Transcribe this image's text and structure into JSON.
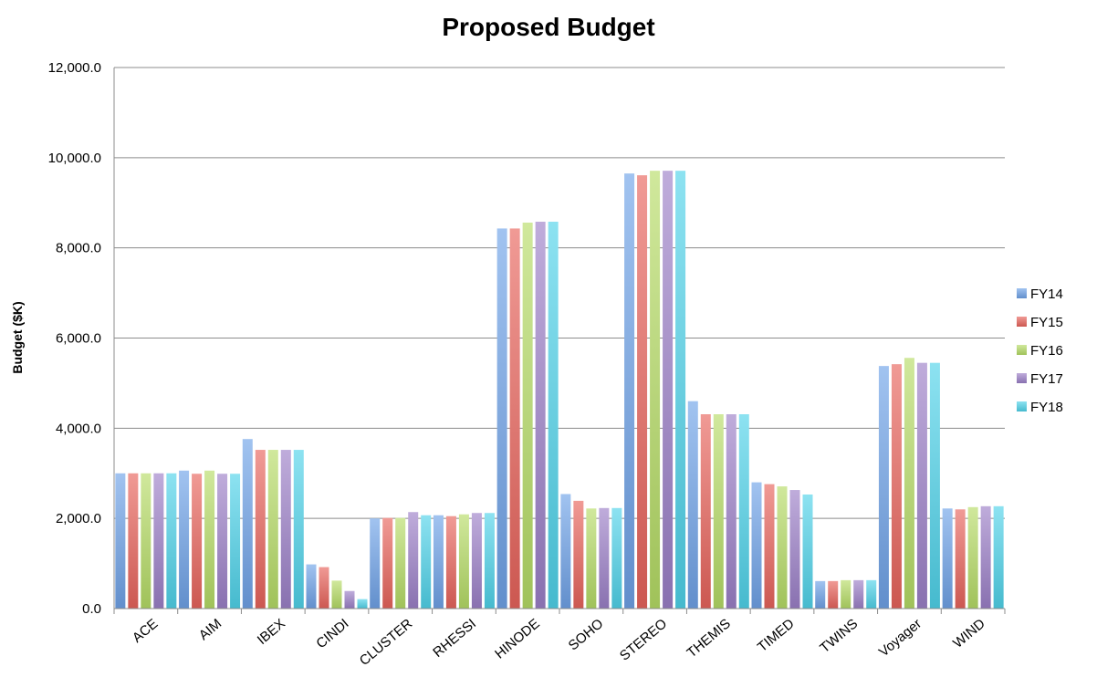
{
  "chart_data": {
    "type": "bar",
    "title": "Proposed Budget",
    "xlabel": "",
    "ylabel": "Budget ($K)",
    "ylim": [
      0,
      12000
    ],
    "yticks": [
      "0.0",
      "2,000.0",
      "4,000.0",
      "6,000.0",
      "8,000.0",
      "10,000.0",
      "12,000.0"
    ],
    "grid": true,
    "legend_position": "right",
    "categories": [
      "ACE",
      "AIM",
      "IBEX",
      "CINDI",
      "CLUSTER",
      "RHESSI",
      "HINODE",
      "SOHO",
      "STEREO",
      "THEMIS",
      "TIMED",
      "TWINS",
      "Voyager",
      "WIND"
    ],
    "series": [
      {
        "name": "FY14",
        "color": "#6fa3e8",
        "values": [
          3000,
          3060,
          3760,
          980,
          2000,
          2070,
          8430,
          2540,
          9650,
          4600,
          2800,
          610,
          5380,
          2220
        ]
      },
      {
        "name": "FY15",
        "color": "#e8645c",
        "values": [
          3000,
          2990,
          3520,
          920,
          2010,
          2050,
          8430,
          2390,
          9610,
          4310,
          2760,
          610,
          5420,
          2200
        ]
      },
      {
        "name": "FY16",
        "color": "#b6dc66",
        "values": [
          3000,
          3060,
          3520,
          620,
          2010,
          2090,
          8560,
          2220,
          9710,
          4310,
          2710,
          630,
          5560,
          2250
        ]
      },
      {
        "name": "FY17",
        "color": "#9c80c8",
        "values": [
          3000,
          2990,
          3520,
          390,
          2140,
          2120,
          8580,
          2230,
          9710,
          4310,
          2630,
          630,
          5450,
          2270
        ]
      },
      {
        "name": "FY18",
        "color": "#4fd3ea",
        "values": [
          3000,
          2990,
          3520,
          210,
          2070,
          2120,
          8580,
          2230,
          9710,
          4310,
          2530,
          630,
          5450,
          2270
        ]
      }
    ]
  }
}
